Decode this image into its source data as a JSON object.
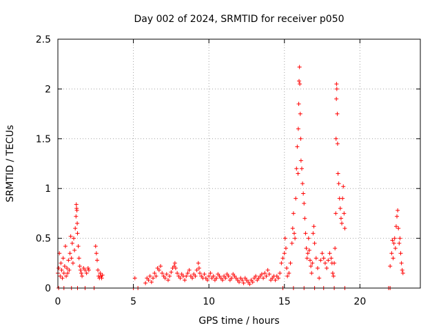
{
  "chart_data": {
    "type": "scatter",
    "title": "Day 002 of 2024, SRMTID for receiver p050",
    "xlabel": "GPS time / hours",
    "ylabel": "SRMTID / TECUs",
    "xlim": [
      0,
      24
    ],
    "ylim": [
      0,
      2.5
    ],
    "xticks": [
      0,
      5,
      10,
      15,
      20
    ],
    "xtick_labels": [
      "0",
      "5",
      "10",
      "15",
      "20"
    ],
    "yticks": [
      0,
      0.5,
      1,
      1.5,
      2,
      2.5
    ],
    "ytick_labels": [
      "0",
      "0.5",
      "1",
      "1.5",
      "2",
      "2.5"
    ],
    "grid": true,
    "marker": "plus",
    "color": "#ff0000",
    "series": [
      {
        "name": "SRMTID",
        "points": [
          [
            0.0,
            0.15
          ],
          [
            0.05,
            0.2
          ],
          [
            0.1,
            0.35
          ],
          [
            0.15,
            0.12
          ],
          [
            0.2,
            0.25
          ],
          [
            0.25,
            0.18
          ],
          [
            0.3,
            0.1
          ],
          [
            0.35,
            0.3
          ],
          [
            0.4,
            0.15
          ],
          [
            0.45,
            0.22
          ],
          [
            0.5,
            0.42
          ],
          [
            0.55,
            0.12
          ],
          [
            0.6,
            0.2
          ],
          [
            0.65,
            0.15
          ],
          [
            0.7,
            0.28
          ],
          [
            0.75,
            0.18
          ],
          [
            0.8,
            0.35
          ],
          [
            0.85,
            0.52
          ],
          [
            0.9,
            0.3
          ],
          [
            0.95,
            0.45
          ],
          [
            1.0,
            0.25
          ],
          [
            1.05,
            0.5
          ],
          [
            1.1,
            0.38
          ],
          [
            1.15,
            0.6
          ],
          [
            1.2,
            0.72
          ],
          [
            1.22,
            0.84
          ],
          [
            1.24,
            0.8
          ],
          [
            1.26,
            0.78
          ],
          [
            1.28,
            0.65
          ],
          [
            1.3,
            0.55
          ],
          [
            1.35,
            0.42
          ],
          [
            1.4,
            0.3
          ],
          [
            1.45,
            0.22
          ],
          [
            1.5,
            0.18
          ],
          [
            1.55,
            0.15
          ],
          [
            1.6,
            0.12
          ],
          [
            1.7,
            0.2
          ],
          [
            1.8,
            0.18
          ],
          [
            1.9,
            0.15
          ],
          [
            2.0,
            0.2
          ],
          [
            2.05,
            0.18
          ],
          [
            2.5,
            0.42
          ],
          [
            2.55,
            0.35
          ],
          [
            2.6,
            0.28
          ],
          [
            2.65,
            0.18
          ],
          [
            2.7,
            0.12
          ],
          [
            2.75,
            0.1
          ],
          [
            2.8,
            0.15
          ],
          [
            2.85,
            0.12
          ],
          [
            2.9,
            0.1
          ],
          [
            2.95,
            0.13
          ],
          [
            0.05,
            0.0
          ],
          [
            0.4,
            0.0
          ],
          [
            0.9,
            0.0
          ],
          [
            1.3,
            0.0
          ],
          [
            1.8,
            0.0
          ],
          [
            2.4,
            0.0
          ],
          [
            5.1,
            0.1
          ],
          [
            5.0,
            0.0
          ],
          [
            5.3,
            0.0
          ],
          [
            5.8,
            0.05
          ],
          [
            5.9,
            0.1
          ],
          [
            6.0,
            0.08
          ],
          [
            6.1,
            0.12
          ],
          [
            6.2,
            0.06
          ],
          [
            6.3,
            0.1
          ],
          [
            6.4,
            0.15
          ],
          [
            6.5,
            0.12
          ],
          [
            6.6,
            0.2
          ],
          [
            6.7,
            0.18
          ],
          [
            6.8,
            0.22
          ],
          [
            6.9,
            0.15
          ],
          [
            7.0,
            0.12
          ],
          [
            7.1,
            0.1
          ],
          [
            7.2,
            0.14
          ],
          [
            7.3,
            0.08
          ],
          [
            7.4,
            0.12
          ],
          [
            7.5,
            0.16
          ],
          [
            7.6,
            0.2
          ],
          [
            7.7,
            0.22
          ],
          [
            7.75,
            0.25
          ],
          [
            7.8,
            0.2
          ],
          [
            7.9,
            0.15
          ],
          [
            8.0,
            0.12
          ],
          [
            8.1,
            0.1
          ],
          [
            8.2,
            0.14
          ],
          [
            8.3,
            0.12
          ],
          [
            8.4,
            0.08
          ],
          [
            8.5,
            0.12
          ],
          [
            8.6,
            0.15
          ],
          [
            8.7,
            0.18
          ],
          [
            8.8,
            0.12
          ],
          [
            8.9,
            0.1
          ],
          [
            9.0,
            0.14
          ],
          [
            9.1,
            0.12
          ],
          [
            9.2,
            0.18
          ],
          [
            9.3,
            0.25
          ],
          [
            9.35,
            0.2
          ],
          [
            9.4,
            0.15
          ],
          [
            9.5,
            0.12
          ],
          [
            9.6,
            0.1
          ],
          [
            9.7,
            0.14
          ],
          [
            9.8,
            0.1
          ],
          [
            9.9,
            0.08
          ],
          [
            10.0,
            0.12
          ],
          [
            10.1,
            0.15
          ],
          [
            10.2,
            0.1
          ],
          [
            10.3,
            0.12
          ],
          [
            10.4,
            0.08
          ],
          [
            10.5,
            0.1
          ],
          [
            10.6,
            0.14
          ],
          [
            10.7,
            0.12
          ],
          [
            10.8,
            0.1
          ],
          [
            10.9,
            0.08
          ],
          [
            11.0,
            0.12
          ],
          [
            11.1,
            0.1
          ],
          [
            11.2,
            0.14
          ],
          [
            11.3,
            0.12
          ],
          [
            11.4,
            0.08
          ],
          [
            11.5,
            0.1
          ],
          [
            11.6,
            0.14
          ],
          [
            11.7,
            0.12
          ],
          [
            11.8,
            0.1
          ],
          [
            11.9,
            0.08
          ],
          [
            12.0,
            0.06
          ],
          [
            12.1,
            0.1
          ],
          [
            12.2,
            0.08
          ],
          [
            12.3,
            0.05
          ],
          [
            12.4,
            0.1
          ],
          [
            12.5,
            0.08
          ],
          [
            12.6,
            0.06
          ],
          [
            12.7,
            0.04
          ],
          [
            12.8,
            0.08
          ],
          [
            12.9,
            0.06
          ],
          [
            13.0,
            0.1
          ],
          [
            13.1,
            0.12
          ],
          [
            13.2,
            0.08
          ],
          [
            13.3,
            0.1
          ],
          [
            13.4,
            0.12
          ],
          [
            13.5,
            0.14
          ],
          [
            13.6,
            0.1
          ],
          [
            13.7,
            0.15
          ],
          [
            13.8,
            0.12
          ],
          [
            13.9,
            0.18
          ],
          [
            14.0,
            0.14
          ],
          [
            14.1,
            0.08
          ],
          [
            14.2,
            0.1
          ],
          [
            14.3,
            0.12
          ],
          [
            14.4,
            0.08
          ],
          [
            14.5,
            0.12
          ],
          [
            14.6,
            0.1
          ],
          [
            14.7,
            0.15
          ],
          [
            14.8,
            0.25
          ],
          [
            14.9,
            0.3
          ],
          [
            15.0,
            0.35
          ],
          [
            15.05,
            0.5
          ],
          [
            15.1,
            0.4
          ],
          [
            15.15,
            0.2
          ],
          [
            15.2,
            0.12
          ],
          [
            15.3,
            0.15
          ],
          [
            15.4,
            0.25
          ],
          [
            15.5,
            0.45
          ],
          [
            15.55,
            0.6
          ],
          [
            15.6,
            0.75
          ],
          [
            15.65,
            0.55
          ],
          [
            15.7,
            0.5
          ],
          [
            15.75,
            0.9
          ],
          [
            15.8,
            1.2
          ],
          [
            15.85,
            1.42
          ],
          [
            15.9,
            1.15
          ],
          [
            15.92,
            1.6
          ],
          [
            15.95,
            1.85
          ],
          [
            15.97,
            2.08
          ],
          [
            16.0,
            2.22
          ],
          [
            16.02,
            2.05
          ],
          [
            16.05,
            1.75
          ],
          [
            16.08,
            1.5
          ],
          [
            16.1,
            1.28
          ],
          [
            16.15,
            1.2
          ],
          [
            16.2,
            1.05
          ],
          [
            16.25,
            0.95
          ],
          [
            16.3,
            0.85
          ],
          [
            16.35,
            0.7
          ],
          [
            16.4,
            0.55
          ],
          [
            16.45,
            0.4
          ],
          [
            16.5,
            0.3
          ],
          [
            16.55,
            0.35
          ],
          [
            16.6,
            0.5
          ],
          [
            16.65,
            0.38
          ],
          [
            16.7,
            0.28
          ],
          [
            16.75,
            0.22
          ],
          [
            16.8,
            0.15
          ],
          [
            16.85,
            0.25
          ],
          [
            16.9,
            0.55
          ],
          [
            16.95,
            0.62
          ],
          [
            17.0,
            0.45
          ],
          [
            17.1,
            0.3
          ],
          [
            17.2,
            0.2
          ],
          [
            17.3,
            0.1
          ],
          [
            17.4,
            0.28
          ],
          [
            17.5,
            0.35
          ],
          [
            17.6,
            0.3
          ],
          [
            17.7,
            0.25
          ],
          [
            17.8,
            0.2
          ],
          [
            17.9,
            0.28
          ],
          [
            18.0,
            0.35
          ],
          [
            18.1,
            0.3
          ],
          [
            18.15,
            0.25
          ],
          [
            18.2,
            0.15
          ],
          [
            18.25,
            0.12
          ],
          [
            18.3,
            0.25
          ],
          [
            18.35,
            0.4
          ],
          [
            18.4,
            0.75
          ],
          [
            18.42,
            1.5
          ],
          [
            18.44,
            1.9
          ],
          [
            18.45,
            2.05
          ],
          [
            18.47,
            2.0
          ],
          [
            18.5,
            1.75
          ],
          [
            18.52,
            1.45
          ],
          [
            18.55,
            1.15
          ],
          [
            18.6,
            1.05
          ],
          [
            18.65,
            0.9
          ],
          [
            18.7,
            0.8
          ],
          [
            18.75,
            0.7
          ],
          [
            18.8,
            0.65
          ],
          [
            18.85,
            0.9
          ],
          [
            18.9,
            1.02
          ],
          [
            18.95,
            0.75
          ],
          [
            19.0,
            0.6
          ],
          [
            14.9,
            0.0
          ],
          [
            15.6,
            0.0
          ],
          [
            16.3,
            0.0
          ],
          [
            17.0,
            0.0
          ],
          [
            17.6,
            0.0
          ],
          [
            18.3,
            0.0
          ],
          [
            19.0,
            0.0
          ],
          [
            21.9,
            0.0
          ],
          [
            22.0,
            0.0
          ],
          [
            22.0,
            0.22
          ],
          [
            22.1,
            0.35
          ],
          [
            22.15,
            0.48
          ],
          [
            22.2,
            0.3
          ],
          [
            22.25,
            0.45
          ],
          [
            22.3,
            0.5
          ],
          [
            22.35,
            0.4
          ],
          [
            22.4,
            0.62
          ],
          [
            22.45,
            0.72
          ],
          [
            22.5,
            0.78
          ],
          [
            22.55,
            0.6
          ],
          [
            22.6,
            0.45
          ],
          [
            22.65,
            0.5
          ],
          [
            22.7,
            0.35
          ],
          [
            22.75,
            0.25
          ],
          [
            22.8,
            0.18
          ],
          [
            22.85,
            0.15
          ]
        ]
      }
    ]
  }
}
